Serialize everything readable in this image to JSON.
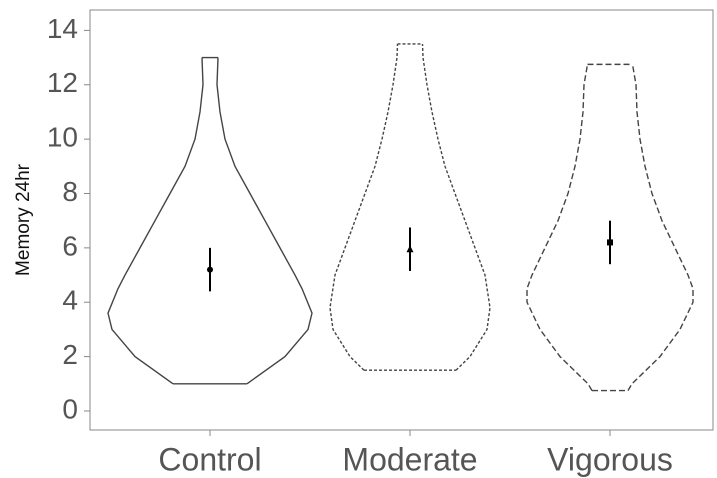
{
  "chart_data": {
    "type": "violin",
    "y_label": "Memory 24hr",
    "categories": [
      "Control",
      "Moderate",
      "Vigorous"
    ],
    "means": [
      5.2,
      5.95,
      6.2
    ],
    "errors": [
      0.8,
      0.8,
      0.8
    ],
    "markers": [
      "circle",
      "triangle",
      "square"
    ],
    "line_styles": [
      "solid",
      "dotted",
      "dashed"
    ],
    "violins": [
      {
        "y": [
          1,
          2,
          3,
          3.6,
          4.5,
          5,
          6,
          7,
          8,
          9,
          10,
          11,
          12,
          13
        ],
        "density": [
          0.37,
          0.75,
          0.98,
          1.02,
          0.92,
          0.85,
          0.7,
          0.55,
          0.4,
          0.25,
          0.15,
          0.1,
          0.07,
          0.08
        ]
      },
      {
        "y": [
          1.5,
          2,
          3,
          3.8,
          5,
          6,
          7,
          8,
          9,
          10,
          11,
          12,
          13,
          13.5
        ],
        "density": [
          0.46,
          0.6,
          0.77,
          0.8,
          0.75,
          0.65,
          0.55,
          0.45,
          0.35,
          0.28,
          0.22,
          0.17,
          0.13,
          0.125
        ]
      },
      {
        "y": [
          0.75,
          1,
          2,
          3,
          4,
          4.5,
          5,
          6,
          7,
          8,
          9,
          10,
          11,
          12,
          12.75
        ],
        "density": [
          0.18,
          0.22,
          0.5,
          0.7,
          0.83,
          0.83,
          0.78,
          0.65,
          0.52,
          0.42,
          0.35,
          0.3,
          0.27,
          0.26,
          0.225
        ]
      }
    ],
    "ylim": [
      -0.7,
      14.75
    ],
    "yticks": [
      0,
      2,
      4,
      6,
      8,
      10,
      12,
      14
    ]
  }
}
